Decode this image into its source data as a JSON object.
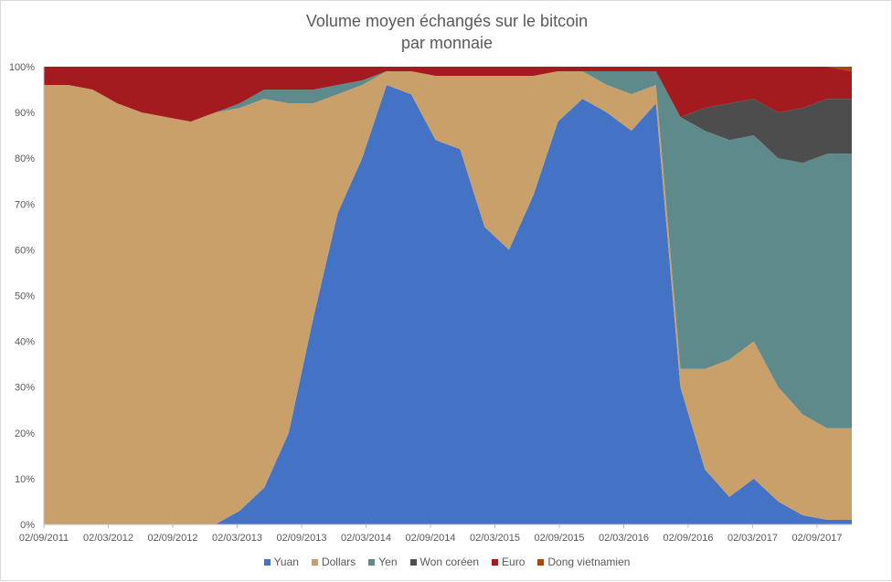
{
  "chart_data": {
    "type": "area",
    "stacked": "percent",
    "title_lines": [
      "Volume moyen échangés sur le bitcoin",
      "par monnaie"
    ],
    "xlabel": "",
    "ylabel": "",
    "x_tick_labels": [
      "02/09/2011",
      "02/03/2012",
      "02/09/2012",
      "02/03/2013",
      "02/09/2013",
      "02/03/2014",
      "02/09/2014",
      "02/03/2015",
      "02/09/2015",
      "02/03/2016",
      "02/09/2016",
      "02/03/2017",
      "02/09/2017"
    ],
    "y_tick_labels": [
      "0%",
      "10%",
      "20%",
      "30%",
      "40%",
      "50%",
      "60%",
      "70%",
      "80%",
      "90%",
      "100%"
    ],
    "ylim": [
      0,
      100
    ],
    "legend_position": "bottom",
    "x": [
      "2011-09",
      "2011-12",
      "2012-03",
      "2012-06",
      "2012-09",
      "2012-12",
      "2013-03",
      "2013-06",
      "2013-08",
      "2013-09",
      "2013-10",
      "2013-11",
      "2013-12",
      "2014-01",
      "2014-03",
      "2014-06",
      "2014-09",
      "2014-12",
      "2015-03",
      "2015-06",
      "2015-09",
      "2015-12",
      "2016-03",
      "2016-06",
      "2016-09",
      "2016-12",
      "2017-01",
      "2017-02",
      "2017-03",
      "2017-06",
      "2017-09",
      "2017-10",
      "2017-11",
      "2017-12"
    ],
    "series": [
      {
        "name": "Yuan",
        "color": "#4472c4",
        "values": [
          0,
          0,
          0,
          0,
          0,
          0,
          0,
          0,
          3,
          8,
          20,
          45,
          68,
          80,
          96,
          94,
          84,
          82,
          65,
          60,
          72,
          88,
          93,
          90,
          86,
          92,
          30,
          12,
          6,
          10,
          5,
          2,
          1,
          1
        ]
      },
      {
        "name": "Dollars",
        "color": "#c9a06a",
        "values": [
          96,
          96,
          95,
          92,
          90,
          89,
          88,
          90,
          88,
          85,
          72,
          47,
          26,
          16,
          3,
          5,
          14,
          16,
          33,
          38,
          26,
          11,
          6,
          6,
          8,
          4,
          4,
          22,
          30,
          30,
          25,
          22,
          20,
          20
        ]
      },
      {
        "name": "Yen",
        "color": "#5f8a8b",
        "values": [
          0,
          0,
          0,
          0,
          0,
          0,
          0,
          0,
          1,
          2,
          3,
          3,
          2,
          1,
          0,
          0,
          0,
          0,
          0,
          0,
          0,
          0,
          0,
          3,
          5,
          3,
          55,
          52,
          48,
          45,
          50,
          55,
          60,
          60
        ]
      },
      {
        "name": "Won coréen",
        "color": "#4d4d4d",
        "values": [
          0,
          0,
          0,
          0,
          0,
          0,
          0,
          0,
          0,
          0,
          0,
          0,
          0,
          0,
          0,
          0,
          0,
          0,
          0,
          0,
          0,
          0,
          0,
          0,
          0,
          0,
          0,
          5,
          8,
          8,
          10,
          12,
          12,
          12
        ]
      },
      {
        "name": "Euro",
        "color": "#a31b1f",
        "values": [
          4,
          4,
          5,
          8,
          10,
          11,
          12,
          10,
          8,
          5,
          5,
          5,
          4,
          3,
          1,
          1,
          2,
          2,
          2,
          2,
          2,
          1,
          1,
          1,
          1,
          1,
          11,
          9,
          8,
          7,
          10,
          9,
          7,
          6
        ]
      },
      {
        "name": "Dong vietnamien",
        "color": "#a9460f",
        "values": [
          0,
          0,
          0,
          0,
          0,
          0,
          0,
          0,
          0,
          0,
          0,
          0,
          0,
          0,
          0,
          0,
          0,
          0,
          0,
          0,
          0,
          0,
          0,
          0,
          0,
          0,
          0,
          0,
          0,
          0,
          0,
          0,
          0,
          1
        ]
      }
    ]
  }
}
